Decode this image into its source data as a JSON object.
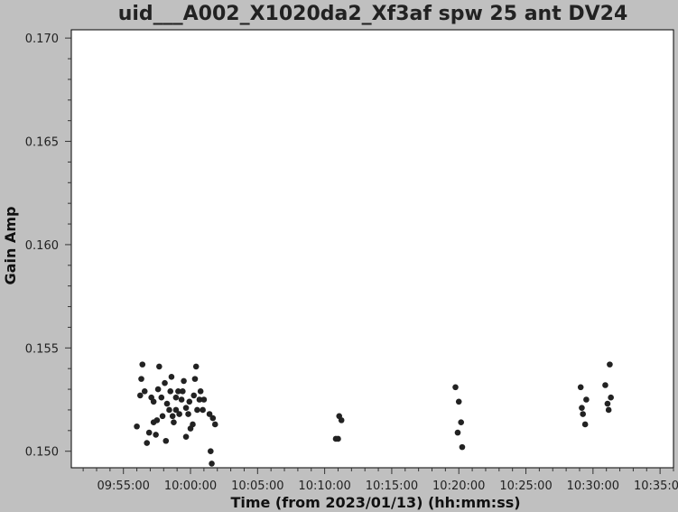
{
  "chart_data": {
    "type": "scatter",
    "title": "uid___A002_X1020da2_Xf3af spw 25 ant DV24",
    "xlabel": "Time (from 2023/01/13) (hh:mm:ss)",
    "ylabel": "Gain Amp",
    "x_unit": "hh:mm:ss",
    "xlim": [
      "09:51:07",
      "10:36:00"
    ],
    "ylim": [
      0.1492,
      0.1704
    ],
    "x_ticks": [
      "09:55:00",
      "10:00:00",
      "10:05:00",
      "10:10:00",
      "10:15:00",
      "10:20:00",
      "10:25:00",
      "10:30:00",
      "10:35:00"
    ],
    "y_ticks": [
      "0.150",
      "0.155",
      "0.160",
      "0.165",
      "0.170"
    ],
    "marker_color": "#222222",
    "grid": false,
    "legend": "none",
    "series": [
      {
        "points": [
          [
            "09:56:00",
            0.1512
          ],
          [
            "09:56:15",
            0.1527
          ],
          [
            "09:56:20",
            0.1535
          ],
          [
            "09:56:25",
            0.1542
          ],
          [
            "09:56:35",
            0.1529
          ],
          [
            "09:56:45",
            0.1504
          ],
          [
            "09:56:55",
            0.1509
          ],
          [
            "09:57:05",
            0.1526
          ],
          [
            "09:57:15",
            0.1514
          ],
          [
            "09:57:15",
            0.1524
          ],
          [
            "09:57:25",
            0.1508
          ],
          [
            "09:57:30",
            0.1515
          ],
          [
            "09:57:35",
            0.153
          ],
          [
            "09:57:40",
            0.1541
          ],
          [
            "09:57:50",
            0.1526
          ],
          [
            "09:57:55",
            0.1517
          ],
          [
            "09:58:05",
            0.1533
          ],
          [
            "09:58:10",
            0.1505
          ],
          [
            "09:58:15",
            0.1523
          ],
          [
            "09:58:25",
            0.152
          ],
          [
            "09:58:30",
            0.1529
          ],
          [
            "09:58:35",
            0.1536
          ],
          [
            "09:58:40",
            0.1517
          ],
          [
            "09:58:45",
            0.1514
          ],
          [
            "09:58:55",
            0.1526
          ],
          [
            "09:58:55",
            0.152
          ],
          [
            "09:59:05",
            0.1529
          ],
          [
            "09:59:10",
            0.1518
          ],
          [
            "09:59:20",
            0.1525
          ],
          [
            "09:59:25",
            0.1529
          ],
          [
            "09:59:30",
            0.1534
          ],
          [
            "09:59:40",
            0.1521
          ],
          [
            "09:59:40",
            0.1507
          ],
          [
            "09:59:50",
            0.1518
          ],
          [
            "09:59:55",
            0.1524
          ],
          [
            "10:00:00",
            0.1511
          ],
          [
            "10:00:10",
            0.1513
          ],
          [
            "10:00:15",
            0.1527
          ],
          [
            "10:00:20",
            0.1535
          ],
          [
            "10:00:25",
            0.1541
          ],
          [
            "10:00:30",
            0.152
          ],
          [
            "10:00:40",
            0.1525
          ],
          [
            "10:00:45",
            0.1529
          ],
          [
            "10:00:55",
            0.152
          ],
          [
            "10:01:00",
            0.1525
          ],
          [
            "10:01:25",
            0.1518
          ],
          [
            "10:01:30",
            0.15
          ],
          [
            "10:01:35",
            0.1494
          ],
          [
            "10:01:40",
            0.1516
          ],
          [
            "10:01:50",
            0.1513
          ],
          [
            "10:10:50",
            0.1506
          ],
          [
            "10:11:00",
            0.1506
          ],
          [
            "10:11:05",
            0.1517
          ],
          [
            "10:11:15",
            0.1515
          ],
          [
            "10:19:45",
            0.1531
          ],
          [
            "10:19:55",
            0.1509
          ],
          [
            "10:20:00",
            0.1524
          ],
          [
            "10:20:10",
            0.1514
          ],
          [
            "10:20:15",
            0.1502
          ],
          [
            "10:29:05",
            0.1531
          ],
          [
            "10:29:10",
            0.1521
          ],
          [
            "10:29:15",
            0.1518
          ],
          [
            "10:29:25",
            0.1513
          ],
          [
            "10:29:30",
            0.1525
          ],
          [
            "10:30:55",
            0.1532
          ],
          [
            "10:31:05",
            0.1523
          ],
          [
            "10:31:10",
            0.152
          ],
          [
            "10:31:15",
            0.1542
          ],
          [
            "10:31:20",
            0.1526
          ]
        ]
      }
    ]
  }
}
